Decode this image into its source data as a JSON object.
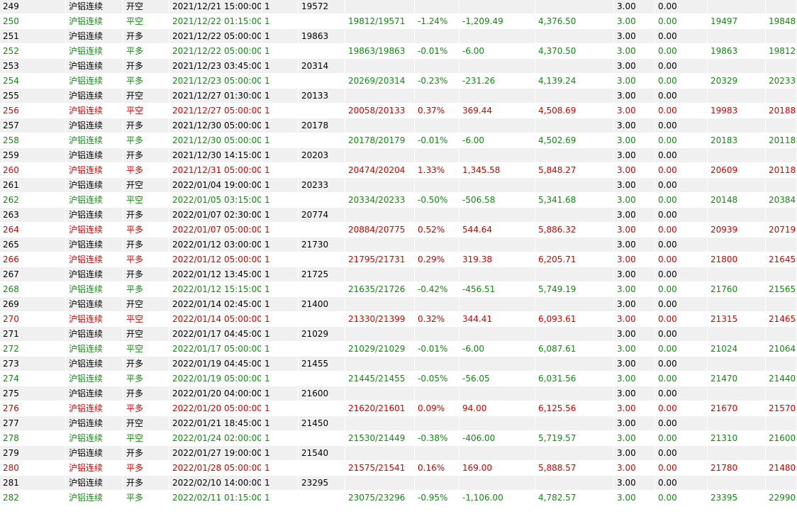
{
  "colors": {
    "open_row_bg": "#f0f0f0",
    "win_text": "#d40000",
    "loss_text": "#118a11",
    "open_text": "#000000"
  },
  "rows": [
    {
      "type": "open",
      "cells": [
        "249",
        "沪铝连续",
        "开空",
        "2021/12/21 15:00:00",
        "1",
        "19572",
        "",
        "",
        "",
        "",
        "3.00",
        "0.00",
        "",
        ""
      ]
    },
    {
      "type": "loss",
      "cells": [
        "250",
        "沪铝连续",
        "平空",
        "2021/12/22 01:15:00",
        "1",
        "",
        "19812/19571",
        "-1.24%",
        "-1,209.49",
        "4,376.50",
        "3.00",
        "0.00",
        "19497",
        "19848"
      ]
    },
    {
      "type": "open",
      "cells": [
        "251",
        "沪铝连续",
        "开多",
        "2021/12/22 05:00:00",
        "1",
        "19863",
        "",
        "",
        "",
        "",
        "3.00",
        "0.00",
        "",
        ""
      ]
    },
    {
      "type": "loss",
      "cells": [
        "252",
        "沪铝连续",
        "平多",
        "2021/12/22 05:00:00",
        "1",
        "",
        "19863/19863",
        "-0.01%",
        "-6.00",
        "4,370.50",
        "3.00",
        "0.00",
        "19863",
        "19812"
      ]
    },
    {
      "type": "open",
      "cells": [
        "253",
        "沪铝连续",
        "开多",
        "2021/12/23 03:45:00",
        "1",
        "20314",
        "",
        "",
        "",
        "",
        "3.00",
        "0.00",
        "",
        ""
      ]
    },
    {
      "type": "loss",
      "cells": [
        "254",
        "沪铝连续",
        "平多",
        "2021/12/23 05:00:00",
        "1",
        "",
        "20269/20314",
        "-0.23%",
        "-231.26",
        "4,139.24",
        "3.00",
        "0.00",
        "20329",
        "20233"
      ]
    },
    {
      "type": "open",
      "cells": [
        "255",
        "沪铝连续",
        "开空",
        "2021/12/27 01:30:00",
        "1",
        "20133",
        "",
        "",
        "",
        "",
        "3.00",
        "0.00",
        "",
        ""
      ]
    },
    {
      "type": "win",
      "cells": [
        "256",
        "沪铝连续",
        "平空",
        "2021/12/27 05:00:00",
        "1",
        "",
        "20058/20133",
        "0.37%",
        "369.44",
        "4,508.69",
        "3.00",
        "0.00",
        "19983",
        "20188"
      ]
    },
    {
      "type": "open",
      "cells": [
        "257",
        "沪铝连续",
        "开多",
        "2021/12/30 05:00:00",
        "1",
        "20178",
        "",
        "",
        "",
        "",
        "3.00",
        "0.00",
        "",
        ""
      ]
    },
    {
      "type": "loss",
      "cells": [
        "258",
        "沪铝连续",
        "平多",
        "2021/12/30 05:00:00",
        "1",
        "",
        "20178/20179",
        "-0.01%",
        "-6.00",
        "4,502.69",
        "3.00",
        "0.00",
        "20183",
        "20118"
      ]
    },
    {
      "type": "open",
      "cells": [
        "259",
        "沪铝连续",
        "开多",
        "2021/12/30 14:15:00",
        "1",
        "20203",
        "",
        "",
        "",
        "",
        "3.00",
        "0.00",
        "",
        ""
      ]
    },
    {
      "type": "win",
      "cells": [
        "260",
        "沪铝连续",
        "平多",
        "2021/12/31 05:00:00",
        "1",
        "",
        "20474/20204",
        "1.33%",
        "1,345.58",
        "5,848.27",
        "3.00",
        "0.00",
        "20609",
        "20118"
      ]
    },
    {
      "type": "open",
      "cells": [
        "261",
        "沪铝连续",
        "开空",
        "2022/01/04 19:00:00",
        "1",
        "20233",
        "",
        "",
        "",
        "",
        "3.00",
        "0.00",
        "",
        ""
      ]
    },
    {
      "type": "loss",
      "cells": [
        "262",
        "沪铝连续",
        "平空",
        "2022/01/05 03:15:00",
        "1",
        "",
        "20334/20233",
        "-0.50%",
        "-506.58",
        "5,341.68",
        "3.00",
        "0.00",
        "20148",
        "20384"
      ]
    },
    {
      "type": "open",
      "cells": [
        "263",
        "沪铝连续",
        "开多",
        "2022/01/07 02:30:00",
        "1",
        "20774",
        "",
        "",
        "",
        "",
        "3.00",
        "0.00",
        "",
        ""
      ]
    },
    {
      "type": "win",
      "cells": [
        "264",
        "沪铝连续",
        "平多",
        "2022/01/07 05:00:00",
        "1",
        "",
        "20884/20775",
        "0.52%",
        "544.64",
        "5,886.32",
        "3.00",
        "0.00",
        "20939",
        "20719"
      ]
    },
    {
      "type": "open",
      "cells": [
        "265",
        "沪铝连续",
        "开多",
        "2022/01/12 03:00:00",
        "1",
        "21730",
        "",
        "",
        "",
        "",
        "3.00",
        "0.00",
        "",
        ""
      ]
    },
    {
      "type": "win",
      "cells": [
        "266",
        "沪铝连续",
        "平多",
        "2022/01/12 05:00:00",
        "1",
        "",
        "21795/21731",
        "0.29%",
        "319.38",
        "6,205.71",
        "3.00",
        "0.00",
        "21800",
        "21645"
      ]
    },
    {
      "type": "open",
      "cells": [
        "267",
        "沪铝连续",
        "开多",
        "2022/01/12 13:45:00",
        "1",
        "21725",
        "",
        "",
        "",
        "",
        "3.00",
        "0.00",
        "",
        ""
      ]
    },
    {
      "type": "loss",
      "cells": [
        "268",
        "沪铝连续",
        "平多",
        "2022/01/12 15:15:00",
        "1",
        "",
        "21635/21726",
        "-0.42%",
        "-456.51",
        "5,749.19",
        "3.00",
        "0.00",
        "21760",
        "21565"
      ]
    },
    {
      "type": "open",
      "cells": [
        "269",
        "沪铝连续",
        "开空",
        "2022/01/14 02:45:00",
        "1",
        "21400",
        "",
        "",
        "",
        "",
        "3.00",
        "0.00",
        "",
        ""
      ]
    },
    {
      "type": "win",
      "cells": [
        "270",
        "沪铝连续",
        "平空",
        "2022/01/14 05:00:00",
        "1",
        "",
        "21330/21399",
        "0.32%",
        "344.41",
        "6,093.61",
        "3.00",
        "0.00",
        "21315",
        "21465"
      ]
    },
    {
      "type": "open",
      "cells": [
        "271",
        "沪铝连续",
        "开空",
        "2022/01/17 04:45:00",
        "1",
        "21029",
        "",
        "",
        "",
        "",
        "3.00",
        "0.00",
        "",
        ""
      ]
    },
    {
      "type": "loss",
      "cells": [
        "272",
        "沪铝连续",
        "平空",
        "2022/01/17 05:00:00",
        "1",
        "",
        "21029/21029",
        "-0.01%",
        "-6.00",
        "6,087.61",
        "3.00",
        "0.00",
        "21024",
        "21064"
      ]
    },
    {
      "type": "open",
      "cells": [
        "273",
        "沪铝连续",
        "开多",
        "2022/01/19 04:45:00",
        "1",
        "21455",
        "",
        "",
        "",
        "",
        "3.00",
        "0.00",
        "",
        ""
      ]
    },
    {
      "type": "loss",
      "cells": [
        "274",
        "沪铝连续",
        "平多",
        "2022/01/19 05:00:00",
        "1",
        "",
        "21445/21455",
        "-0.05%",
        "-56.05",
        "6,031.56",
        "3.00",
        "0.00",
        "21470",
        "21440"
      ]
    },
    {
      "type": "open",
      "cells": [
        "275",
        "沪铝连续",
        "开多",
        "2022/01/20 04:00:00",
        "1",
        "21600",
        "",
        "",
        "",
        "",
        "3.00",
        "0.00",
        "",
        ""
      ]
    },
    {
      "type": "win",
      "cells": [
        "276",
        "沪铝连续",
        "平多",
        "2022/01/20 05:00:00",
        "1",
        "",
        "21620/21601",
        "0.09%",
        "94.00",
        "6,125.56",
        "3.00",
        "0.00",
        "21670",
        "21570"
      ]
    },
    {
      "type": "open",
      "cells": [
        "277",
        "沪铝连续",
        "开空",
        "2022/01/21 18:45:00",
        "1",
        "21450",
        "",
        "",
        "",
        "",
        "3.00",
        "0.00",
        "",
        ""
      ]
    },
    {
      "type": "loss",
      "cells": [
        "278",
        "沪铝连续",
        "平空",
        "2022/01/24 02:00:00",
        "1",
        "",
        "21530/21449",
        "-0.38%",
        "-406.00",
        "5,719.57",
        "3.00",
        "0.00",
        "21310",
        "21600"
      ]
    },
    {
      "type": "open",
      "cells": [
        "279",
        "沪铝连续",
        "开多",
        "2022/01/27 19:00:00",
        "1",
        "21540",
        "",
        "",
        "",
        "",
        "3.00",
        "0.00",
        "",
        ""
      ]
    },
    {
      "type": "win",
      "cells": [
        "280",
        "沪铝连续",
        "平多",
        "2022/01/28 05:00:00",
        "1",
        "",
        "21575/21541",
        "0.16%",
        "169.00",
        "5,888.57",
        "3.00",
        "0.00",
        "21780",
        "21480"
      ]
    },
    {
      "type": "open",
      "cells": [
        "281",
        "沪铝连续",
        "开多",
        "2022/02/10 14:00:00",
        "1",
        "23295",
        "",
        "",
        "",
        "",
        "3.00",
        "0.00",
        "",
        ""
      ]
    },
    {
      "type": "loss",
      "cells": [
        "282",
        "沪铝连续",
        "平多",
        "2022/02/11 01:15:00",
        "1",
        "",
        "23075/23296",
        "-0.95%",
        "-1,106.00",
        "4,782.57",
        "3.00",
        "0.00",
        "23395",
        "22990"
      ]
    }
  ]
}
